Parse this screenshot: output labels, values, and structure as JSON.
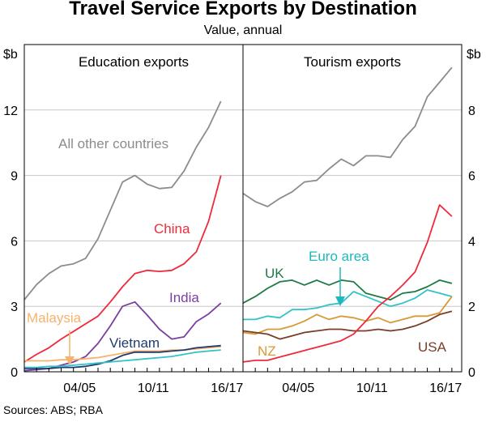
{
  "title": "Travel Service Exports by Destination",
  "subtitle": "Value, annual",
  "source": "Sources: ABS; RBA",
  "chart_data": [
    {
      "type": "line",
      "panel_title": "Education exports",
      "ylabel": "$b",
      "ylim": [
        0,
        15
      ],
      "yticks": [
        0,
        3,
        6,
        9,
        12
      ],
      "x": [
        2000,
        2001,
        2002,
        2003,
        2004,
        2005,
        2006,
        2007,
        2008,
        2009,
        2010,
        2011,
        2012,
        2013,
        2014,
        2015,
        2016,
        2017
      ],
      "xtick_labels": [
        "04/05",
        "10/11",
        "16/17"
      ],
      "xtick_values": [
        2005,
        2011,
        2017
      ],
      "series": [
        {
          "name": "All other countries",
          "color": "#8c8c8c",
          "values": [
            3.3,
            4.0,
            4.5,
            4.85,
            4.95,
            5.2,
            6.1,
            7.4,
            8.7,
            9.0,
            8.6,
            8.4,
            8.45,
            9.2,
            10.3,
            11.2,
            12.4,
            null
          ]
        },
        {
          "name": "China",
          "color": "#ee2a3b",
          "values": [
            0.45,
            0.8,
            1.1,
            1.5,
            1.85,
            2.2,
            2.55,
            3.2,
            3.9,
            4.5,
            4.65,
            4.6,
            4.65,
            4.95,
            5.5,
            6.9,
            9.0,
            null
          ]
        },
        {
          "name": "India",
          "color": "#7b3f9e",
          "values": [
            0.05,
            0.1,
            0.15,
            0.3,
            0.45,
            0.7,
            1.3,
            2.1,
            3.0,
            3.2,
            2.6,
            1.95,
            1.5,
            1.6,
            2.3,
            2.65,
            3.15,
            null
          ]
        },
        {
          "name": "Malaysia",
          "color": "#f5b26e",
          "values": [
            0.5,
            0.5,
            0.5,
            0.55,
            0.55,
            0.6,
            0.65,
            0.75,
            0.85,
            0.95,
            0.95,
            0.95,
            1.0,
            1.0,
            1.05,
            1.1,
            1.15,
            null
          ]
        },
        {
          "name": "Vietnam",
          "color": "#1f3b6d",
          "values": [
            0.15,
            0.15,
            0.15,
            0.2,
            0.2,
            0.25,
            0.35,
            0.5,
            0.75,
            0.9,
            0.9,
            0.9,
            0.95,
            1.0,
            1.1,
            1.15,
            1.2,
            null
          ]
        },
        {
          "name": "",
          "color": "#33c2c7",
          "values": [
            0.2,
            0.2,
            0.25,
            0.25,
            0.3,
            0.35,
            0.4,
            0.45,
            0.5,
            0.55,
            0.6,
            0.65,
            0.7,
            0.8,
            0.9,
            0.95,
            1.0,
            null
          ]
        }
      ],
      "labels": [
        {
          "text": "All other countries",
          "color": "#8c8c8c"
        },
        {
          "text": "China",
          "color": "#ee2a3b"
        },
        {
          "text": "India",
          "color": "#7b3f9e"
        },
        {
          "text": "Malaysia",
          "color": "#f5b26e"
        },
        {
          "text": "Vietnam",
          "color": "#1f3b6d"
        }
      ]
    },
    {
      "type": "line",
      "panel_title": "Tourism exports",
      "ylabel": "$b",
      "ylim": [
        0,
        10
      ],
      "yticks": [
        0,
        2,
        4,
        6,
        8
      ],
      "x": [
        2000,
        2001,
        2002,
        2003,
        2004,
        2005,
        2006,
        2007,
        2008,
        2009,
        2010,
        2011,
        2012,
        2013,
        2014,
        2015,
        2016,
        2017
      ],
      "xtick_labels": [
        "04/05",
        "10/11",
        "16/17"
      ],
      "xtick_values": [
        2005,
        2011,
        2017
      ],
      "series": [
        {
          "name": "",
          "color": "#8c8c8c",
          "values": [
            5.45,
            5.2,
            5.05,
            5.3,
            5.5,
            5.8,
            5.85,
            6.2,
            6.5,
            6.3,
            6.6,
            6.6,
            6.55,
            7.1,
            7.5,
            8.4,
            8.85,
            9.3
          ]
        },
        {
          "name": "UK",
          "color": "#1e7a46",
          "values": [
            2.1,
            2.3,
            2.55,
            2.75,
            2.8,
            2.65,
            2.8,
            2.65,
            2.8,
            2.75,
            2.4,
            2.3,
            2.2,
            2.4,
            2.45,
            2.6,
            2.8,
            2.7
          ]
        },
        {
          "name": "Euro area",
          "color": "#33c2c7",
          "values": [
            1.6,
            1.6,
            1.7,
            1.65,
            1.9,
            1.9,
            1.95,
            2.05,
            2.1,
            2.45,
            2.3,
            2.15,
            2.0,
            2.1,
            2.25,
            2.5,
            2.4,
            2.3
          ]
        },
        {
          "name": "NZ",
          "color": "#d79a34",
          "values": [
            1.2,
            1.15,
            1.3,
            1.3,
            1.4,
            1.55,
            1.75,
            1.6,
            1.7,
            1.65,
            1.55,
            1.65,
            1.5,
            1.6,
            1.7,
            1.7,
            1.8,
            2.3
          ]
        },
        {
          "name": "USA",
          "color": "#7a3e28",
          "values": [
            1.25,
            1.2,
            1.15,
            1.0,
            1.1,
            1.2,
            1.25,
            1.3,
            1.3,
            1.25,
            1.25,
            1.3,
            1.25,
            1.3,
            1.4,
            1.55,
            1.75,
            1.85
          ]
        },
        {
          "name": "",
          "color": "#ee2a3b",
          "values": [
            0.3,
            0.35,
            0.35,
            0.45,
            0.55,
            0.65,
            0.75,
            0.85,
            0.95,
            1.15,
            1.55,
            2.0,
            2.3,
            2.65,
            3.05,
            3.95,
            5.1,
            4.75
          ]
        }
      ],
      "labels": [
        {
          "text": "UK",
          "color": "#1e7a46"
        },
        {
          "text": "Euro area",
          "color": "#1fb8be"
        },
        {
          "text": "NZ",
          "color": "#d79a34"
        },
        {
          "text": "USA",
          "color": "#7a3e28"
        }
      ]
    }
  ]
}
